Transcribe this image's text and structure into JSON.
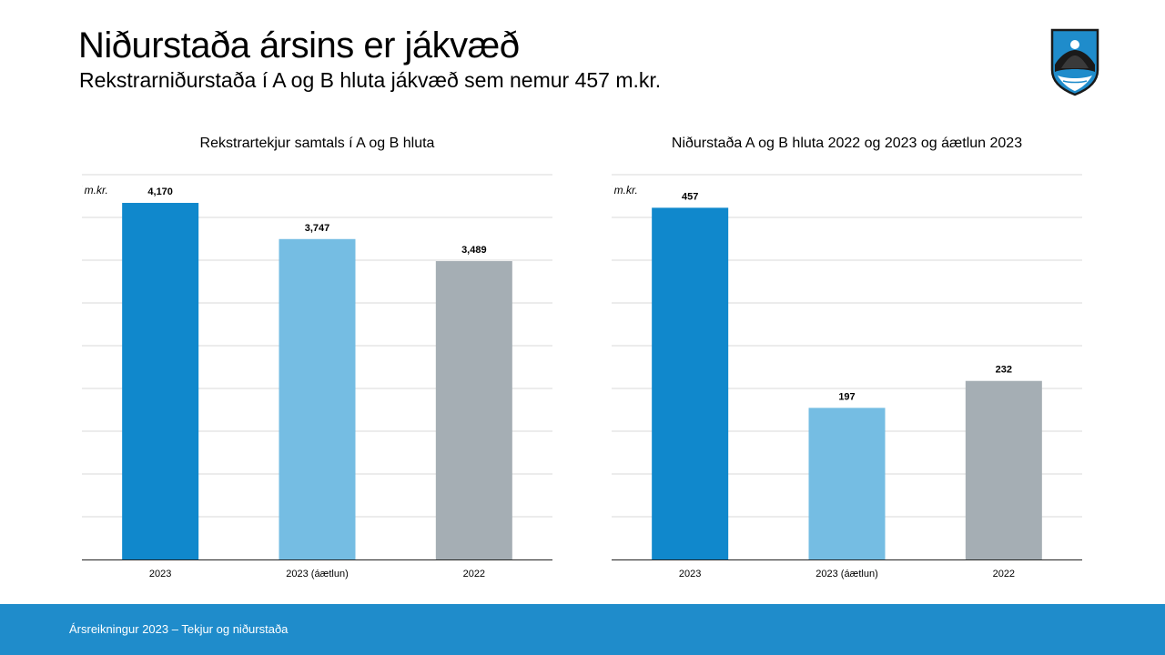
{
  "slide": {
    "title": "Niðurstaða ársins er jákvæð",
    "subtitle": "Rekstrarniðurstaða í A og B hluta jákvæð sem nemur 457 m.kr."
  },
  "footer": {
    "text": "Ársreikningur 2023 – Tekjur og niðurstaða"
  },
  "logo": {
    "icon": "coat-of-arms-icon",
    "colors": [
      "#1f8ccb",
      "#1a1a1a",
      "#ffffff"
    ]
  },
  "colors": {
    "actual_2023": "#1088cc",
    "budget_2023": "#75bde3",
    "actual_2022": "#a5aeb4",
    "footer": "#1f8ccb"
  },
  "chart_data": [
    {
      "type": "bar",
      "title": "Rekstrartekjur samtals í A og B hluta",
      "unit_label": "í m.kr.",
      "categories": [
        "2023",
        "2023 (áætlun)",
        "2022"
      ],
      "values": [
        4170,
        3747,
        3489
      ],
      "value_labels": [
        "4,170",
        "3,747",
        "3,489"
      ],
      "ylim": [
        0,
        4500
      ],
      "grid": true,
      "y_tick_labels_shown": false,
      "legend": "none"
    },
    {
      "type": "bar",
      "title": "Niðurstaða A og B hluta 2022 og 2023 og áætlun 2023",
      "unit_label": "í m.kr.",
      "categories": [
        "2023",
        "2023 (áætlun)",
        "2022"
      ],
      "values": [
        457,
        197,
        232
      ],
      "value_labels": [
        "457",
        "197",
        "232"
      ],
      "ylim": [
        0,
        500
      ],
      "grid": true,
      "y_tick_labels_shown": false,
      "legend": "none"
    }
  ]
}
